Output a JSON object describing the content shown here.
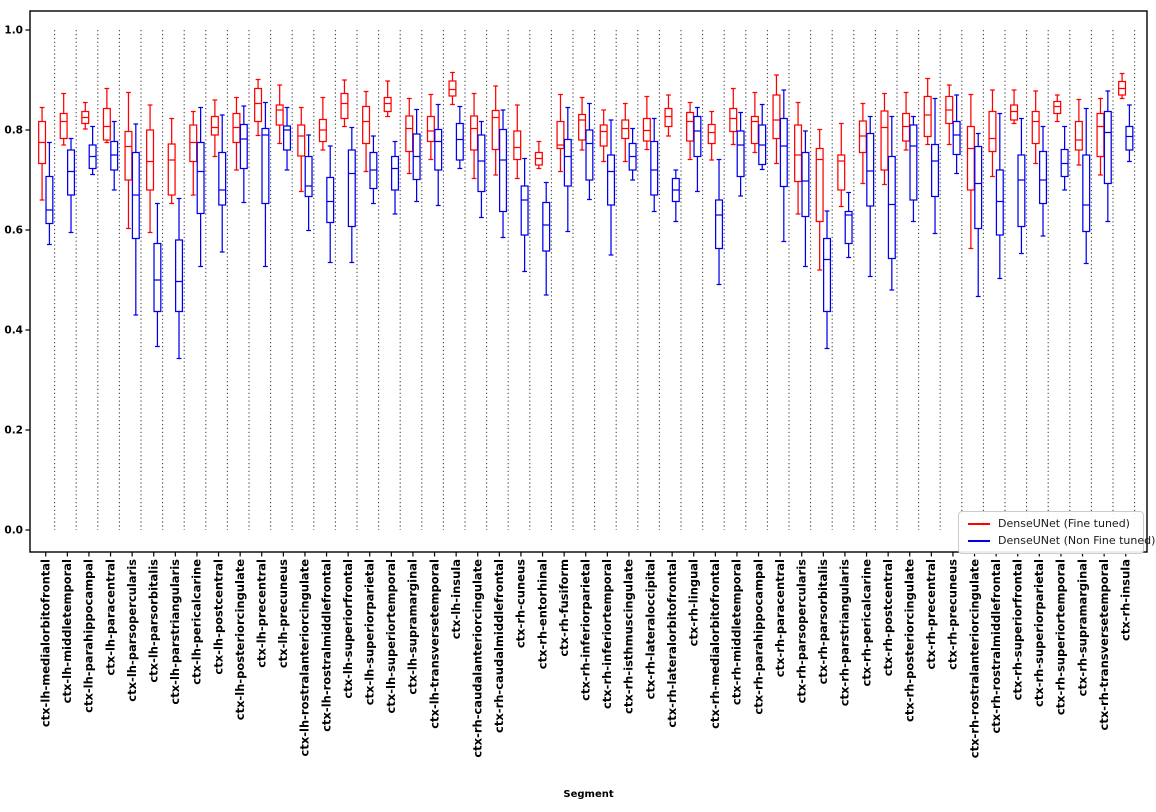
{
  "figure": {
    "xlabel": "Segment",
    "background": "#ffffff"
  },
  "axes": {
    "ytick_labels": [
      "0.0",
      "0.2",
      "0.4",
      "0.6",
      "0.8",
      "1.0"
    ],
    "ytick_values": [
      0.0,
      0.2,
      0.4,
      0.6,
      0.8,
      1.0
    ]
  },
  "legend": {
    "entries": [
      {
        "label": "DenseUNet (Fine tuned)",
        "color": "#ff0000"
      },
      {
        "label": "DenseUNet (Non Fine tuned)",
        "color": "#0000ee"
      }
    ]
  },
  "chart_data": {
    "type": "boxplot",
    "title": "",
    "xlabel": "Segment",
    "ylabel": "",
    "ylim": [
      -0.044,
      1.038
    ],
    "yticks": [
      0.0,
      0.2,
      0.4,
      0.6,
      0.8,
      1.0
    ],
    "grid": "vertical dotted separator after each category, spanning y=0.0 to y=1.0",
    "legend_position": "lower right",
    "box_format": [
      "whisker_low",
      "q1",
      "median",
      "q3",
      "whisker_high"
    ],
    "categories": [
      "ctx-lh-medialorbitofrontal",
      "ctx-lh-middletemporal",
      "ctx-lh-parahippocampal",
      "ctx-lh-paracentral",
      "ctx-lh-parsopercularis",
      "ctx-lh-parsorbitalis",
      "ctx-lh-parstriangularis",
      "ctx-lh-pericalcarine",
      "ctx-lh-postcentral",
      "ctx-lh-posteriorcingulate",
      "ctx-lh-precentral",
      "ctx-lh-precuneus",
      "ctx-lh-rostralanteriorcingulate",
      "ctx-lh-rostralmiddlefrontal",
      "ctx-lh-superiorfrontal",
      "ctx-lh-superiorparietal",
      "ctx-lh-superiortemporal",
      "ctx-lh-supramarginal",
      "ctx-lh-transversetemporal",
      "ctx-lh-insula",
      "ctx-rh-caudalanteriorcingulate",
      "ctx-rh-caudalmiddlefrontal",
      "ctx-rh-cuneus",
      "ctx-rh-entorhinal",
      "ctx-rh-fusiform",
      "ctx-rh-inferiorparietal",
      "ctx-rh-inferiortemporal",
      "ctx-rh-isthmuscingulate",
      "ctx-rh-lateraloccipital",
      "ctx-rh-lateralorbitofrontal",
      "ctx-rh-lingual",
      "ctx-rh-medialorbitofrontal",
      "ctx-rh-middletemporal",
      "ctx-rh-parahippocampal",
      "ctx-rh-paracentral",
      "ctx-rh-parsopercularis",
      "ctx-rh-parsorbitalis",
      "ctx-rh-parstriangularis",
      "ctx-rh-pericalcarine",
      "ctx-rh-postcentral",
      "ctx-rh-posteriorcingulate",
      "ctx-rh-precentral",
      "ctx-rh-precuneus",
      "ctx-rh-rostralanteriorcingulate",
      "ctx-rh-rostralmiddlefrontal",
      "ctx-rh-superiorfrontal",
      "ctx-rh-superiorparietal",
      "ctx-rh-superiortemporal",
      "ctx-rh-supramarginal",
      "ctx-rh-transversetemporal",
      "ctx-rh-insula"
    ],
    "series": [
      {
        "name": "DenseUNet (Fine tuned)",
        "color": "#ff0000",
        "boxes": [
          [
            0.66,
            0.733,
            0.775,
            0.817,
            0.845
          ],
          [
            0.77,
            0.783,
            0.817,
            0.833,
            0.873
          ],
          [
            0.802,
            0.813,
            0.825,
            0.837,
            0.855
          ],
          [
            0.775,
            0.78,
            0.807,
            0.843,
            0.883
          ],
          [
            0.603,
            0.7,
            0.767,
            0.797,
            0.875
          ],
          [
            0.595,
            0.68,
            0.737,
            0.8,
            0.85
          ],
          [
            0.653,
            0.67,
            0.74,
            0.772,
            0.823
          ],
          [
            0.67,
            0.737,
            0.775,
            0.81,
            0.837
          ],
          [
            0.747,
            0.79,
            0.805,
            0.827,
            0.86
          ],
          [
            0.72,
            0.775,
            0.805,
            0.833,
            0.865
          ],
          [
            0.789,
            0.817,
            0.853,
            0.883,
            0.901
          ],
          [
            0.773,
            0.81,
            0.84,
            0.85,
            0.89
          ],
          [
            0.677,
            0.748,
            0.788,
            0.81,
            0.845
          ],
          [
            0.76,
            0.777,
            0.8,
            0.821,
            0.865
          ],
          [
            0.807,
            0.823,
            0.853,
            0.873,
            0.9
          ],
          [
            0.717,
            0.773,
            0.817,
            0.847,
            0.877
          ],
          [
            0.827,
            0.837,
            0.853,
            0.865,
            0.898
          ],
          [
            0.713,
            0.757,
            0.803,
            0.828,
            0.863
          ],
          [
            0.741,
            0.777,
            0.798,
            0.827,
            0.871
          ],
          [
            0.851,
            0.868,
            0.881,
            0.898,
            0.915
          ],
          [
            0.703,
            0.76,
            0.803,
            0.828,
            0.873
          ],
          [
            0.71,
            0.761,
            0.825,
            0.839,
            0.888
          ],
          [
            0.703,
            0.741,
            0.765,
            0.798,
            0.85
          ],
          [
            0.723,
            0.73,
            0.743,
            0.755,
            0.777
          ],
          [
            0.717,
            0.763,
            0.77,
            0.817,
            0.871
          ],
          [
            0.76,
            0.78,
            0.82,
            0.831,
            0.865
          ],
          [
            0.737,
            0.768,
            0.797,
            0.81,
            0.84
          ],
          [
            0.737,
            0.783,
            0.803,
            0.82,
            0.853
          ],
          [
            0.761,
            0.778,
            0.799,
            0.823,
            0.867
          ],
          [
            0.788,
            0.807,
            0.827,
            0.843,
            0.87
          ],
          [
            0.741,
            0.778,
            0.817,
            0.835,
            0.855
          ],
          [
            0.74,
            0.773,
            0.795,
            0.811,
            0.837
          ],
          [
            0.771,
            0.797,
            0.823,
            0.843,
            0.883
          ],
          [
            0.755,
            0.773,
            0.817,
            0.827,
            0.875
          ],
          [
            0.733,
            0.783,
            0.82,
            0.87,
            0.91
          ],
          [
            0.632,
            0.697,
            0.75,
            0.81,
            0.855
          ],
          [
            0.52,
            0.617,
            0.741,
            0.763,
            0.801
          ],
          [
            0.647,
            0.68,
            0.738,
            0.75,
            0.813
          ],
          [
            0.693,
            0.755,
            0.788,
            0.818,
            0.853
          ],
          [
            0.691,
            0.72,
            0.805,
            0.838,
            0.873
          ],
          [
            0.76,
            0.778,
            0.807,
            0.833,
            0.875
          ],
          [
            0.771,
            0.787,
            0.83,
            0.867,
            0.903
          ],
          [
            0.771,
            0.813,
            0.84,
            0.867,
            0.89
          ],
          [
            0.563,
            0.68,
            0.763,
            0.807,
            0.871
          ],
          [
            0.707,
            0.757,
            0.783,
            0.837,
            0.88
          ],
          [
            0.813,
            0.82,
            0.837,
            0.85,
            0.88
          ],
          [
            0.733,
            0.773,
            0.817,
            0.837,
            0.878
          ],
          [
            0.817,
            0.833,
            0.847,
            0.857,
            0.87
          ],
          [
            0.73,
            0.76,
            0.78,
            0.817,
            0.861
          ],
          [
            0.71,
            0.747,
            0.807,
            0.833,
            0.863
          ],
          [
            0.863,
            0.87,
            0.883,
            0.897,
            0.913
          ]
        ]
      },
      {
        "name": "DenseUNet (Non Fine tuned)",
        "color": "#0000ee",
        "boxes": [
          [
            0.571,
            0.613,
            0.64,
            0.707,
            0.775
          ],
          [
            0.595,
            0.67,
            0.717,
            0.76,
            0.783
          ],
          [
            0.711,
            0.723,
            0.747,
            0.77,
            0.807
          ],
          [
            0.68,
            0.72,
            0.75,
            0.777,
            0.817
          ],
          [
            0.43,
            0.583,
            0.67,
            0.755,
            0.812
          ],
          [
            0.367,
            0.437,
            0.5,
            0.573,
            0.653
          ],
          [
            0.343,
            0.437,
            0.497,
            0.58,
            0.663
          ],
          [
            0.527,
            0.633,
            0.717,
            0.775,
            0.845
          ],
          [
            0.556,
            0.65,
            0.68,
            0.755,
            0.83
          ],
          [
            0.655,
            0.723,
            0.782,
            0.811,
            0.848
          ],
          [
            0.527,
            0.653,
            0.79,
            0.803,
            0.855
          ],
          [
            0.72,
            0.76,
            0.8,
            0.808,
            0.845
          ],
          [
            0.599,
            0.667,
            0.688,
            0.747,
            0.79
          ],
          [
            0.535,
            0.615,
            0.657,
            0.705,
            0.768
          ],
          [
            0.535,
            0.607,
            0.713,
            0.76,
            0.805
          ],
          [
            0.653,
            0.683,
            0.72,
            0.755,
            0.788
          ],
          [
            0.632,
            0.68,
            0.723,
            0.747,
            0.777
          ],
          [
            0.657,
            0.701,
            0.747,
            0.792,
            0.841
          ],
          [
            0.649,
            0.72,
            0.777,
            0.801,
            0.851
          ],
          [
            0.723,
            0.74,
            0.781,
            0.813,
            0.847
          ],
          [
            0.625,
            0.677,
            0.738,
            0.79,
            0.817
          ],
          [
            0.585,
            0.637,
            0.74,
            0.801,
            0.84
          ],
          [
            0.517,
            0.59,
            0.66,
            0.688,
            0.743
          ],
          [
            0.47,
            0.558,
            0.61,
            0.655,
            0.695
          ],
          [
            0.597,
            0.688,
            0.747,
            0.781,
            0.845
          ],
          [
            0.661,
            0.7,
            0.773,
            0.8,
            0.853
          ],
          [
            0.55,
            0.65,
            0.717,
            0.75,
            0.82
          ],
          [
            0.7,
            0.72,
            0.747,
            0.773,
            0.803
          ],
          [
            0.637,
            0.67,
            0.72,
            0.777,
            0.823
          ],
          [
            0.617,
            0.657,
            0.68,
            0.703,
            0.72
          ],
          [
            0.677,
            0.747,
            0.798,
            0.827,
            0.845
          ],
          [
            0.491,
            0.563,
            0.63,
            0.66,
            0.741
          ],
          [
            0.668,
            0.707,
            0.77,
            0.798,
            0.835
          ],
          [
            0.721,
            0.731,
            0.77,
            0.81,
            0.851
          ],
          [
            0.577,
            0.687,
            0.768,
            0.823,
            0.88
          ],
          [
            0.527,
            0.627,
            0.698,
            0.755,
            0.798
          ],
          [
            0.363,
            0.437,
            0.541,
            0.583,
            0.638
          ],
          [
            0.545,
            0.573,
            0.63,
            0.637,
            0.675
          ],
          [
            0.507,
            0.648,
            0.718,
            0.793,
            0.827
          ],
          [
            0.48,
            0.543,
            0.651,
            0.747,
            0.827
          ],
          [
            0.617,
            0.66,
            0.768,
            0.81,
            0.827
          ],
          [
            0.593,
            0.667,
            0.738,
            0.771,
            0.863
          ],
          [
            0.713,
            0.751,
            0.79,
            0.817,
            0.87
          ],
          [
            0.467,
            0.603,
            0.693,
            0.767,
            0.793
          ],
          [
            0.503,
            0.59,
            0.657,
            0.72,
            0.833
          ],
          [
            0.553,
            0.607,
            0.7,
            0.75,
            0.823
          ],
          [
            0.588,
            0.653,
            0.7,
            0.757,
            0.807
          ],
          [
            0.68,
            0.707,
            0.733,
            0.761,
            0.807
          ],
          [
            0.533,
            0.597,
            0.65,
            0.75,
            0.843
          ],
          [
            0.617,
            0.693,
            0.795,
            0.837,
            0.878
          ],
          [
            0.737,
            0.76,
            0.787,
            0.807,
            0.85
          ]
        ]
      }
    ]
  }
}
